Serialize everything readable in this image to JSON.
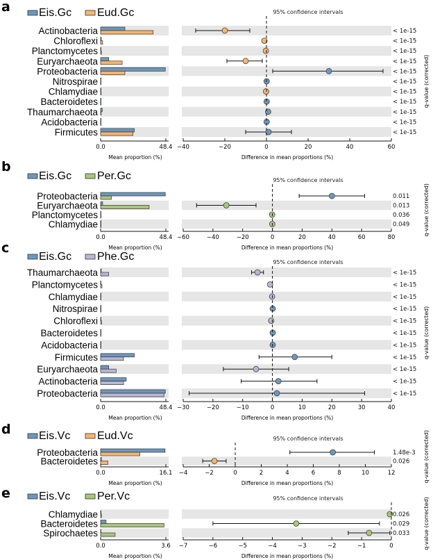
{
  "colors": {
    "Eis": "#6d97bd",
    "Eud": "#f8b56e",
    "Per": "#a9c67a",
    "Phe": "#bab6d3",
    "shade": "#e6e6e6"
  },
  "common": {
    "ci_title": "95% confidence intervals",
    "xlabel_left": "Mean proportion (%)",
    "xlabel_right": "Difference in mean proportions (%)",
    "qlabel": "q-value (corrected)"
  },
  "chart_data": [
    {
      "panel": "a",
      "type": "bar+errorbar",
      "groups": [
        "Eis.Gc",
        "Eud.Gc"
      ],
      "group_colors": [
        "Eis",
        "Eud"
      ],
      "prop_max": 48.4,
      "prop_ticks": [
        "0.0",
        "48.4"
      ],
      "diff_range": [
        -40,
        60
      ],
      "diff_ticks": [
        -40,
        -20,
        0,
        20,
        40,
        60
      ],
      "rows": [
        {
          "taxon": "Actinobacteria",
          "g1": 18,
          "g2": 39,
          "diff": -20,
          "ci": [
            -34,
            -8
          ],
          "q": "< 1e-15"
        },
        {
          "taxon": "Chloroflexi",
          "g1": 0.5,
          "g2": 1.5,
          "diff": -1,
          "ci": [
            -1,
            -1
          ],
          "q": "< 1e-15"
        },
        {
          "taxon": "Planctomycetes",
          "g1": 0.3,
          "g2": 0.6,
          "diff": -0.3,
          "ci": [
            -0.3,
            -0.3
          ],
          "q": "< 1e-15"
        },
        {
          "taxon": "Euryarchaeota",
          "g1": 6,
          "g2": 16,
          "diff": -10,
          "ci": [
            -19,
            -2
          ],
          "q": "< 1e-15"
        },
        {
          "taxon": "Proteobacteria",
          "g1": 48,
          "g2": 18,
          "diff": 30,
          "ci": [
            3,
            56
          ],
          "q": "< 1e-15"
        },
        {
          "taxon": "Nitrospirae",
          "g1": 0.3,
          "g2": 0.2,
          "diff": 0.1,
          "ci": [
            0.1,
            0.1
          ],
          "q": "< 1e-15"
        },
        {
          "taxon": "Chlamydiae",
          "g1": 0.2,
          "g2": 0.4,
          "diff": -0.2,
          "ci": [
            -0.2,
            -0.2
          ],
          "q": "< 1e-15"
        },
        {
          "taxon": "Bacteroidetes",
          "g1": 0.3,
          "g2": 0.2,
          "diff": 0.1,
          "ci": [
            0.1,
            0.1
          ],
          "q": "< 1e-15"
        },
        {
          "taxon": "Thaumarchaeota",
          "g1": 1.2,
          "g2": 0.4,
          "diff": 0.8,
          "ci": [
            0.3,
            1.3
          ],
          "q": "< 1e-15"
        },
        {
          "taxon": "Acidobacteria",
          "g1": 0.2,
          "g2": 0.1,
          "diff": 0.1,
          "ci": [
            0.1,
            0.1
          ],
          "q": "< 1e-15"
        },
        {
          "taxon": "Firmicutes",
          "g1": 25,
          "g2": 24,
          "diff": 1,
          "ci": [
            -10,
            12
          ],
          "q": "< 1e-15"
        }
      ]
    },
    {
      "panel": "b",
      "type": "bar+errorbar",
      "groups": [
        "Eis.Gc",
        "Per.Gc"
      ],
      "group_colors": [
        "Eis",
        "Per"
      ],
      "prop_max": 48.4,
      "prop_ticks": [
        "0.0",
        "48.4"
      ],
      "diff_range": [
        -60,
        80
      ],
      "diff_ticks": [
        -60,
        -40,
        -20,
        0,
        20,
        40,
        60,
        80
      ],
      "rows": [
        {
          "taxon": "Proteobacteria",
          "g1": 48,
          "g2": 8,
          "diff": 40,
          "ci": [
            18,
            62
          ],
          "q": "0.011"
        },
        {
          "taxon": "Euryarchaeota",
          "g1": 1.5,
          "g2": 36,
          "diff": -31,
          "ci": [
            -51,
            -11
          ],
          "q": "0.013"
        },
        {
          "taxon": "Planctomycetes",
          "g1": 0.1,
          "g2": 0.3,
          "diff": -0.2,
          "ci": [
            -0.2,
            -0.2
          ],
          "q": "0.036"
        },
        {
          "taxon": "Chlamydiae",
          "g1": 0.1,
          "g2": 0.2,
          "diff": -0.1,
          "ci": [
            -0.1,
            -0.1
          ],
          "q": "0.049"
        }
      ]
    },
    {
      "panel": "c",
      "type": "bar+errorbar",
      "groups": [
        "Eis.Gc",
        "Phe.Gc"
      ],
      "group_colors": [
        "Eis",
        "Phe"
      ],
      "prop_max": 48.4,
      "prop_ticks": [
        "0.0",
        "48.4"
      ],
      "diff_range": [
        -30,
        40
      ],
      "diff_ticks": [
        -30,
        -20,
        -10,
        0,
        10,
        20,
        30,
        40
      ],
      "rows": [
        {
          "taxon": "Thaumarchaeota",
          "g1": 0.5,
          "g2": 6,
          "diff": -5,
          "ci": [
            -7,
            -3
          ],
          "q": "< 1e-15"
        },
        {
          "taxon": "Planctomycetes",
          "g1": 0.2,
          "g2": 1,
          "diff": -0.8,
          "ci": [
            -0.8,
            -0.8
          ],
          "q": "< 1e-15"
        },
        {
          "taxon": "Chlamydiae",
          "g1": 0.1,
          "g2": 0.2,
          "diff": -0.1,
          "ci": [
            -0.1,
            -0.1
          ],
          "q": "< 1e-15"
        },
        {
          "taxon": "Nitrospirae",
          "g1": 0.3,
          "g2": 0.2,
          "diff": 0.1,
          "ci": [
            0.1,
            0.1
          ],
          "q": "< 1e-15"
        },
        {
          "taxon": "Chloroflexi",
          "g1": 0.3,
          "g2": 0.7,
          "diff": -0.4,
          "ci": [
            -0.4,
            -0.4
          ],
          "q": "< 1e-15"
        },
        {
          "taxon": "Bacteroidetes",
          "g1": 0.3,
          "g2": 0.2,
          "diff": 0.1,
          "ci": [
            0.1,
            0.1
          ],
          "q": "< 1e-15"
        },
        {
          "taxon": "Acidobacteria",
          "g1": 0.2,
          "g2": 0.1,
          "diff": 0.1,
          "ci": [
            0.1,
            0.1
          ],
          "q": "< 1e-15"
        },
        {
          "taxon": "Firmicutes",
          "g1": 25,
          "g2": 17,
          "diff": 7.5,
          "ci": [
            -4.5,
            20
          ],
          "q": "< 1e-15"
        },
        {
          "taxon": "Euryarchaeota",
          "g1": 6,
          "g2": 11.5,
          "diff": -5.5,
          "ci": [
            -16.5,
            5.5
          ],
          "q": "< 1e-15"
        },
        {
          "taxon": "Actinobacteria",
          "g1": 19,
          "g2": 17,
          "diff": 2,
          "ci": [
            -10.5,
            15
          ],
          "q": "< 1e-15"
        },
        {
          "taxon": "Proteobacteria",
          "g1": 48,
          "g2": 47,
          "diff": 1.5,
          "ci": [
            -28,
            31
          ],
          "q": "< 1e-15"
        }
      ]
    },
    {
      "panel": "d",
      "type": "bar+errorbar",
      "groups": [
        "Eis.Vc",
        "Eud.Vc"
      ],
      "group_colors": [
        "Eis",
        "Eud"
      ],
      "prop_max": 16.1,
      "prop_ticks": [
        "0.0",
        "16.1"
      ],
      "diff_range": [
        -4,
        12
      ],
      "diff_ticks": [
        -4,
        -2,
        0,
        2,
        4,
        6,
        8,
        10,
        12
      ],
      "rows": [
        {
          "taxon": "Proteobacteria",
          "g1": 15.9,
          "g2": 9.7,
          "diff": 7.5,
          "ci": [
            4.2,
            10.7
          ],
          "q": "1.48e-3"
        },
        {
          "taxon": "Bacteroidetes",
          "g1": 0.2,
          "g2": 1.8,
          "diff": -1.6,
          "ci": [
            -2.5,
            -0.7
          ],
          "q": "0.026"
        }
      ]
    },
    {
      "panel": "e",
      "type": "bar+errorbar",
      "groups": [
        "Eis.Vc",
        "Per.Vc"
      ],
      "group_colors": [
        "Eis",
        "Per"
      ],
      "prop_max": 3.6,
      "prop_ticks": [
        "0.0",
        "3.6"
      ],
      "diff_range": [
        -7,
        0
      ],
      "diff_ticks": [
        -7,
        -6,
        -5,
        -4,
        -3,
        -2,
        -1,
        0
      ],
      "rows": [
        {
          "taxon": "Chlamydiae",
          "g1": 0.0,
          "g2": 0.05,
          "diff": -0.05,
          "ci": [
            -0.05,
            -0.05
          ],
          "q": "0.026"
        },
        {
          "taxon": "Bacteroidetes",
          "g1": 0.3,
          "g2": 3.5,
          "diff": -3.2,
          "ci": [
            -6,
            -0.4
          ],
          "q": "0.029"
        },
        {
          "taxon": "Spirochaetes",
          "g1": 0.02,
          "g2": 0.8,
          "diff": -0.75,
          "ci": [
            -1.45,
            -0.05
          ],
          "q": "0.033"
        }
      ]
    }
  ]
}
